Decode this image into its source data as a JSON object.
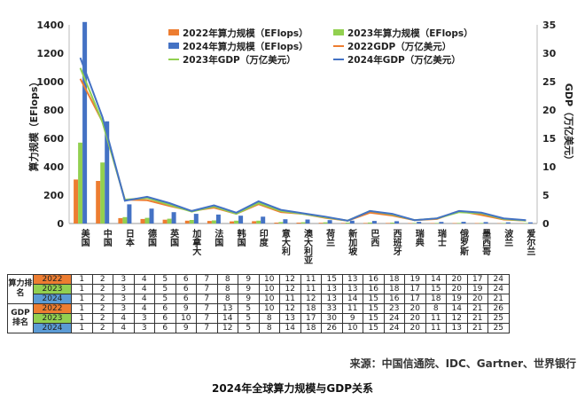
{
  "chart_data": {
    "type": "bar+line",
    "categories": [
      "美国",
      "中国",
      "日本",
      "德国",
      "英国",
      "加拿大",
      "法国",
      "韩国",
      "印度",
      "意大利",
      "澳大利亚",
      "荷兰",
      "新加坡",
      "巴西",
      "西班牙",
      "瑞典",
      "瑞士",
      "俄罗斯",
      "墨西哥",
      "波兰",
      "爱尔兰"
    ],
    "series": [
      {
        "name": "2022年算力规模（EFlops）",
        "kind": "bar",
        "axis": "left",
        "color": "#ed7d31",
        "values": [
          310,
          300,
          38,
          32,
          27,
          20,
          18,
          15,
          16,
          6,
          6,
          5,
          4,
          4,
          4,
          3,
          3,
          3,
          3,
          2,
          2
        ]
      },
      {
        "name": "2023年算力规模（EFlops）",
        "kind": "bar",
        "axis": "left",
        "color": "#92d050",
        "values": [
          570,
          430,
          45,
          40,
          34,
          25,
          22,
          20,
          20,
          10,
          9,
          8,
          6,
          7,
          6,
          4,
          4,
          4,
          4,
          3,
          3
        ]
      },
      {
        "name": "2024年算力规模（EFlops）",
        "kind": "bar",
        "axis": "left",
        "color": "#4472c4",
        "values": [
          1420,
          720,
          135,
          105,
          80,
          68,
          63,
          55,
          48,
          30,
          28,
          24,
          20,
          18,
          16,
          12,
          11,
          12,
          10,
          8,
          8
        ]
      },
      {
        "name": "2022GDP（万亿美元）",
        "kind": "line",
        "axis": "right",
        "color": "#ed7d31",
        "values": [
          25.5,
          17.9,
          4.2,
          4.1,
          3.1,
          2.2,
          2.8,
          1.7,
          3.4,
          2.0,
          1.7,
          1.0,
          0.5,
          1.9,
          1.4,
          0.6,
          0.8,
          2.2,
          1.5,
          0.7,
          0.5
        ]
      },
      {
        "name": "2023年GDP（万亿美元）",
        "kind": "line",
        "axis": "right",
        "color": "#92d050",
        "values": [
          27.4,
          17.8,
          4.2,
          4.5,
          3.3,
          2.1,
          3.0,
          1.7,
          3.6,
          2.2,
          1.7,
          1.1,
          0.5,
          2.2,
          1.6,
          0.6,
          0.9,
          2.0,
          1.8,
          0.8,
          0.5
        ]
      },
      {
        "name": "2024年GDP（万亿美元）",
        "kind": "line",
        "axis": "right",
        "color": "#4472c4",
        "values": [
          29.2,
          18.7,
          4.0,
          4.7,
          3.6,
          2.2,
          3.2,
          1.9,
          3.9,
          2.4,
          1.8,
          1.2,
          0.5,
          2.2,
          1.7,
          0.6,
          0.9,
          2.2,
          1.9,
          0.9,
          0.6
        ]
      }
    ],
    "ylabel": "算力规模（EFlops）",
    "y2label": "GDP（万亿美元）",
    "ylim": [
      0,
      1400
    ],
    "yticks": [
      0,
      200,
      400,
      600,
      800,
      1000,
      1200,
      1400
    ],
    "y2lim": [
      0,
      35
    ],
    "y2ticks": [
      0,
      5,
      10,
      15,
      20,
      25,
      30,
      35
    ],
    "legend": "top-right",
    "grid": false
  },
  "ranking_table": {
    "groups": [
      {
        "label": "算力排名",
        "rows": [
          {
            "year": "2022",
            "color": "#ed7d31",
            "values": [
              "1",
              "2",
              "3",
              "4",
              "5",
              "6",
              "7",
              "8",
              "9",
              "10",
              "12",
              "11",
              "15",
              "13",
              "16",
              "18",
              "19",
              "14",
              "20",
              "17",
              "24"
            ]
          },
          {
            "year": "2023",
            "color": "#92d050",
            "values": [
              "1",
              "2",
              "3",
              "4",
              "5",
              "6",
              "7",
              "8",
              "9",
              "10",
              "12",
              "11",
              "13",
              "13",
              "16",
              "18",
              "17",
              "15",
              "20",
              "19",
              "24"
            ]
          },
          {
            "year": "2024",
            "color": "#5b9bd5",
            "values": [
              "1",
              "2",
              "3",
              "4",
              "5",
              "6",
              "7",
              "8",
              "9",
              "10",
              "11",
              "12",
              "13",
              "14",
              "15",
              "16",
              "17",
              "18",
              "19",
              "20",
              "21"
            ]
          }
        ]
      },
      {
        "label": "GDP排名",
        "rows": [
          {
            "year": "2022",
            "color": "#ed7d31",
            "values": [
              "1",
              "2",
              "3",
              "4",
              "6",
              "9",
              "7",
              "13",
              "5",
              "10",
              "12",
              "18",
              "33",
              "11",
              "15",
              "23",
              "20",
              "8",
              "14",
              "21",
              "26"
            ]
          },
          {
            "year": "2023",
            "color": "#92d050",
            "values": [
              "1",
              "2",
              "4",
              "3",
              "6",
              "10",
              "7",
              "14",
              "5",
              "8",
              "13",
              "17",
              "30",
              "9",
              "15",
              "24",
              "20",
              "11",
              "12",
              "21",
              "25"
            ]
          },
          {
            "year": "2024",
            "color": "#5b9bd5",
            "values": [
              "1",
              "2",
              "4",
              "3",
              "6",
              "9",
              "7",
              "12",
              "5",
              "8",
              "14",
              "18",
              "26",
              "10",
              "15",
              "24",
              "20",
              "11",
              "13",
              "21",
              "25"
            ]
          }
        ]
      }
    ]
  },
  "source": "来源：中国信通院、IDC、Gartner、世界银行",
  "caption": "2024年全球算力规模与GDP关系"
}
